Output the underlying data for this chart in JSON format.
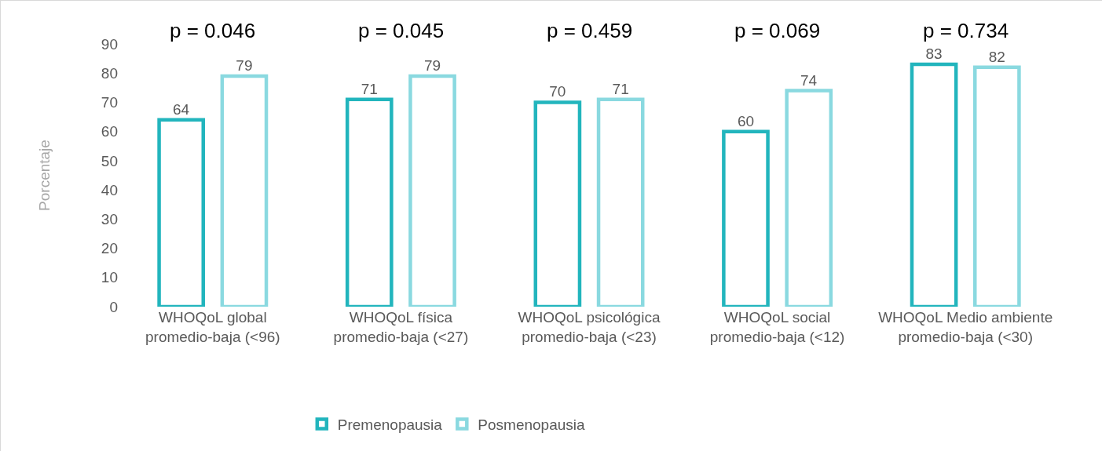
{
  "chart_data": {
    "type": "bar",
    "ylabel": "Porcentaje",
    "categories": [
      "WHOQoL global promedio-baja (<96)",
      "WHOQoL física promedio-baja (<27)",
      "WHOQoL psicológica promedio-baja (<23)",
      "WHOQoL social promedio-baja (<12)",
      "WHOQoL Medio ambiente promedio-baja (<30)"
    ],
    "series": [
      {
        "name": "Premenopausia",
        "color": "#22b5bd",
        "values": [
          64,
          71,
          70,
          60,
          83
        ]
      },
      {
        "name": "Posmenopausia",
        "color": "#8ad9e0",
        "values": [
          79,
          79,
          71,
          74,
          82
        ]
      }
    ],
    "ylim": [
      0,
      90
    ],
    "yticks": [
      0,
      10,
      20,
      30,
      40,
      50,
      60,
      70,
      80,
      90
    ],
    "grid": false,
    "data_labels": true,
    "legend": "bottom",
    "annotations": [
      "p = 0.046",
      "p = 0.045",
      "p = 0.459",
      "p = 0.069",
      "p = 0.734"
    ]
  }
}
